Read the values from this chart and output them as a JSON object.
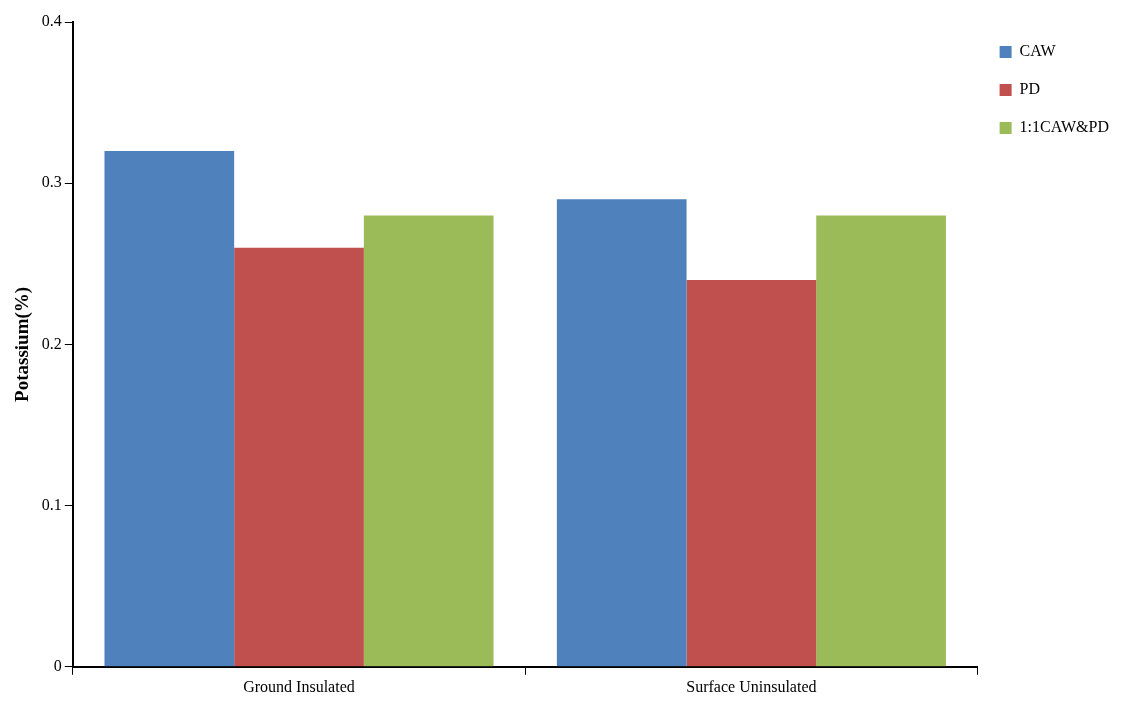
{
  "chart_data": {
    "type": "bar",
    "ylabel": "Potassium(%)",
    "categories": [
      "Ground Insulated",
      "Surface Uninsulated"
    ],
    "series": [
      {
        "name": "CAW",
        "color": "#4f81bd",
        "values": [
          0.32,
          0.29
        ]
      },
      {
        "name": "PD",
        "color": "#c0504d",
        "values": [
          0.26,
          0.24
        ]
      },
      {
        "name": "1:1CAW&PD",
        "color": "#9bbb59",
        "values": [
          0.28,
          0.28
        ]
      }
    ],
    "ylim": [
      0,
      0.4
    ],
    "yticks": [
      0,
      0.1,
      0.2,
      0.3,
      0.4
    ],
    "grid": false,
    "legend": "top right"
  }
}
